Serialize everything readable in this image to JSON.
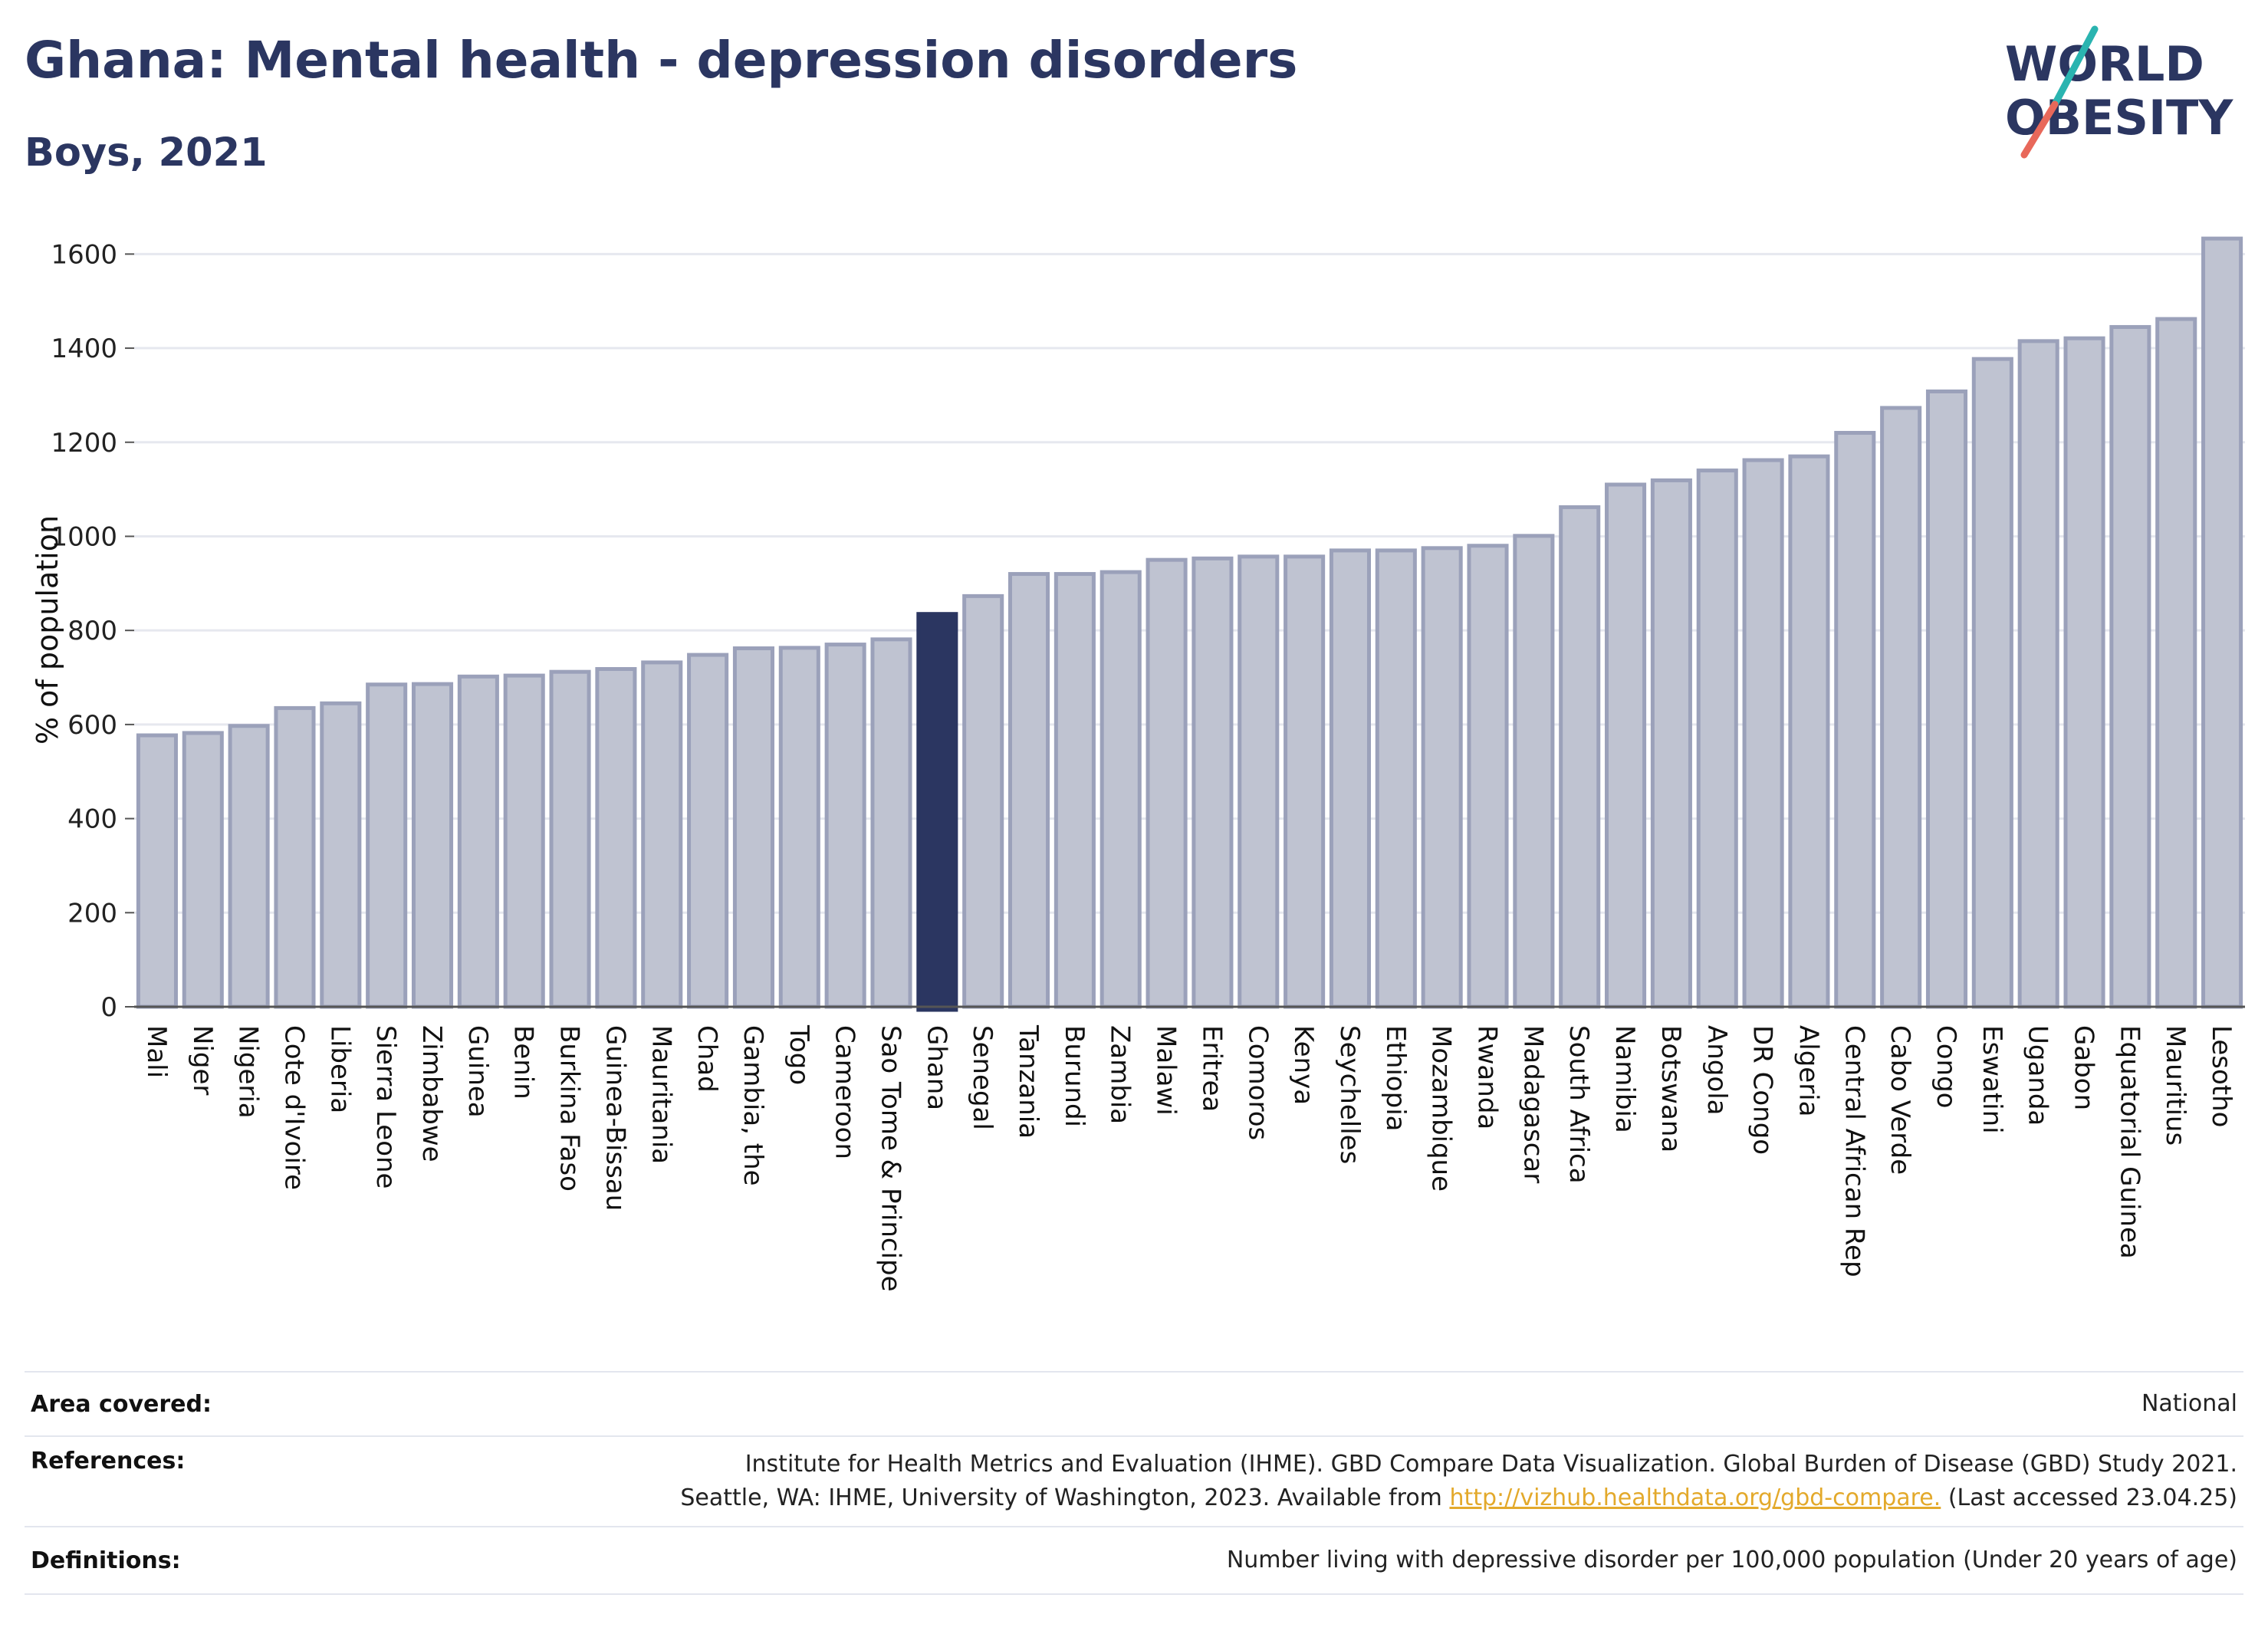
{
  "title": "Ghana: Mental health - depression disorders",
  "subtitle": "Boys, 2021",
  "logo": {
    "line1": "WORLD",
    "line2": "OBESITY"
  },
  "colors": {
    "bar": "#bfc3d1",
    "bar_stroke": "#9ba1ba",
    "highlight": "#2b3661",
    "title": "#2b3661",
    "grid": "#e6e8ef",
    "link": "#e3a92b"
  },
  "chart_data": {
    "type": "bar",
    "ylabel": "% of population",
    "ylim": [
      0,
      1700
    ],
    "yticks": [
      0,
      200,
      400,
      600,
      800,
      1000,
      1200,
      1400,
      1600
    ],
    "grid": true,
    "highlight": "Ghana",
    "categories": [
      "Mali",
      "Niger",
      "Nigeria",
      "Cote d'Ivoire",
      "Liberia",
      "Sierra Leone",
      "Zimbabwe",
      "Guinea",
      "Benin",
      "Burkina Faso",
      "Guinea-Bissau",
      "Mauritania",
      "Chad",
      "Gambia, the",
      "Togo",
      "Cameroon",
      "Sao Tome & Principe",
      "Ghana",
      "Senegal",
      "Tanzania",
      "Burundi",
      "Zambia",
      "Malawi",
      "Eritrea",
      "Comoros",
      "Kenya",
      "Seychelles",
      "Ethiopia",
      "Mozambique",
      "Rwanda",
      "Madagascar",
      "South Africa",
      "Namibia",
      "Botswana",
      "Angola",
      "DR Congo",
      "Algeria",
      "Central African Rep",
      "Cabo Verde",
      "Congo",
      "Eswatini",
      "Uganda",
      "Gabon",
      "Equatorial Guinea",
      "Mauritius",
      "Lesotho"
    ],
    "values": [
      577,
      582,
      597,
      635,
      645,
      685,
      686,
      702,
      704,
      712,
      718,
      732,
      748,
      762,
      763,
      770,
      781,
      835,
      873,
      920,
      920,
      924,
      950,
      953,
      957,
      957,
      970,
      970,
      975,
      980,
      1001,
      1062,
      1110,
      1119,
      1140,
      1162,
      1170,
      1220,
      1273,
      1308,
      1377,
      1415,
      1421,
      1445,
      1462,
      1633
    ]
  },
  "footer": {
    "area_label": "Area covered:",
    "area_value": "National",
    "ref_label": "References:",
    "ref_line1": "Institute for Health Metrics and Evaluation (IHME). GBD Compare Data Visualization. Global Burden of Disease (GBD) Study 2021.",
    "ref_line2_pre": "Seattle, WA: IHME, University of Washington, 2023. Available from ",
    "ref_link": "http://vizhub.healthdata.org/gbd-compare.",
    "ref_line2_post": " (Last accessed 23.04.25)",
    "def_label": "Definitions:",
    "def_value": "Number living with depressive disorder per 100,000 population (Under 20 years of age)"
  }
}
